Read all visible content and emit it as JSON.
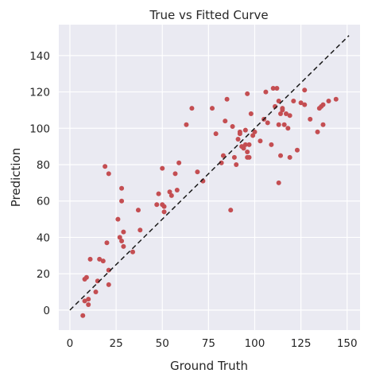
{
  "chart_data": {
    "type": "scatter",
    "title": "True vs Fitted Curve",
    "xlabel": "Ground Truth",
    "ylabel": "Prediction",
    "xlim": [
      -6,
      157
    ],
    "ylim": [
      -11,
      157
    ],
    "xticks": [
      0,
      25,
      50,
      75,
      100,
      125,
      150
    ],
    "yticks": [
      0,
      20,
      40,
      60,
      80,
      100,
      120,
      140
    ],
    "grid": true,
    "background": "#eaeaf2",
    "point_color": "#c44e52",
    "reference_line": {
      "x": [
        0,
        151
      ],
      "y": [
        0,
        151
      ],
      "style": "dashed",
      "color": "#1a1a1a"
    },
    "series": [
      {
        "x": [
          7,
          8,
          8,
          9,
          10,
          10,
          11,
          14,
          15,
          16,
          18,
          19,
          20,
          21,
          21,
          21,
          26,
          27,
          28,
          28,
          28,
          29,
          29,
          34,
          37,
          38,
          47,
          48,
          50,
          50,
          51,
          51,
          54,
          55,
          57,
          58,
          59,
          63,
          66,
          69,
          72,
          77,
          79,
          82,
          83,
          84,
          85,
          87,
          88,
          89,
          90,
          91,
          92,
          92,
          93,
          94,
          95,
          95,
          96,
          96,
          96,
          97,
          97,
          98,
          99,
          100,
          103,
          105,
          106,
          107,
          109,
          110,
          111,
          112,
          113,
          113,
          113,
          114,
          114,
          115,
          115,
          116,
          117,
          118,
          119,
          119,
          121,
          123,
          125,
          127,
          127,
          130,
          134,
          135,
          136,
          137,
          137,
          140,
          144
        ],
        "y": [
          -3,
          5,
          17,
          18,
          3,
          6,
          28,
          10,
          16,
          28,
          27,
          79,
          37,
          14,
          22,
          75,
          50,
          40,
          60,
          67,
          38,
          43,
          35,
          32,
          55,
          44,
          58,
          64,
          78,
          58,
          54,
          57,
          65,
          63,
          75,
          66,
          81,
          102,
          111,
          76,
          71,
          111,
          97,
          81,
          85,
          104,
          116,
          55,
          101,
          84,
          80,
          94,
          97,
          98,
          90,
          89,
          99,
          91,
          84,
          87,
          119,
          84,
          91,
          108,
          96,
          98,
          93,
          105,
          120,
          103,
          91,
          122,
          112,
          122,
          115,
          102,
          70,
          85,
          108,
          111,
          110,
          102,
          108,
          100,
          107,
          84,
          115,
          88,
          114,
          113,
          121,
          105,
          98,
          111,
          112,
          113,
          102,
          115,
          116
        ]
      }
    ]
  }
}
